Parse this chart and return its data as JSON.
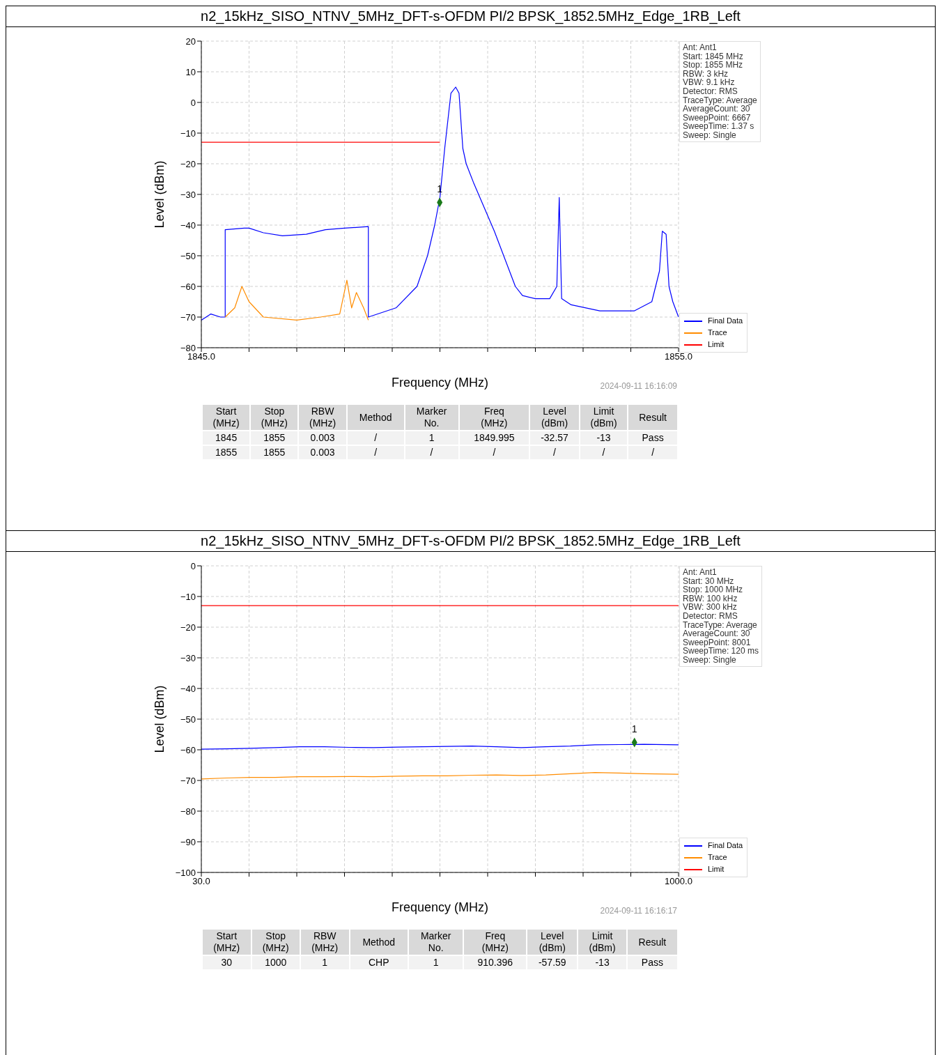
{
  "chart_data": [
    {
      "type": "line",
      "title": "n2_15kHz_SISO_NTNV_5MHz_DFT-s-OFDM PI/2 BPSK_1852.5MHz_Edge_1RB_Left",
      "xlabel": "Frequency (MHz)",
      "ylabel": "Level (dBm)",
      "xlim": [
        1845,
        1855
      ],
      "xticks": [
        {
          "value": 1845,
          "label": "1845.0"
        },
        {
          "value": 1846,
          "label": null
        },
        {
          "value": 1847,
          "label": null
        },
        {
          "value": 1848,
          "label": null
        },
        {
          "value": 1849,
          "label": null
        },
        {
          "value": 1850,
          "label": null
        },
        {
          "value": 1851,
          "label": null
        },
        {
          "value": 1852,
          "label": null
        },
        {
          "value": 1853,
          "label": null
        },
        {
          "value": 1854,
          "label": null
        },
        {
          "value": 1855,
          "label": "1855.0"
        }
      ],
      "ylim": [
        -80,
        20
      ],
      "yticks": [
        {
          "value": -80,
          "label": "−80"
        },
        {
          "value": -70,
          "label": "−70"
        },
        {
          "value": -60,
          "label": "−60"
        },
        {
          "value": -50,
          "label": "−50"
        },
        {
          "value": -40,
          "label": "−40"
        },
        {
          "value": -30,
          "label": "−30"
        },
        {
          "value": -20,
          "label": "−20"
        },
        {
          "value": -10,
          "label": "−10"
        },
        0,
        10,
        20
      ],
      "grid": true,
      "legend": "bottom right",
      "series": [
        {
          "name": "Final Data",
          "color": "#0000ff",
          "x": [
            1845,
            1845.2,
            1845.4,
            1845.5,
            1845.5,
            1845.9,
            1846,
            1846.3,
            1846.7,
            1847.2,
            1847.6,
            1848,
            1848.5,
            1848.5,
            1849.08,
            1849.52,
            1849.74,
            1849.89,
            1850,
            1850.1,
            1850.23,
            1850.33,
            1850.4,
            1850.48,
            1850.55,
            1850.7,
            1851.14,
            1851.58,
            1851.73,
            1852,
            1852.3,
            1852.45,
            1852.5,
            1852.55,
            1852.75,
            1853.35,
            1854.07,
            1854.44,
            1854.6,
            1854.66,
            1854.74,
            1854.8,
            1854.88,
            1855
          ],
          "values": [
            -71,
            -69,
            -70,
            -70,
            -41.5,
            -41,
            -41,
            -42.5,
            -43.5,
            -43,
            -41.5,
            -41,
            -40.5,
            -70,
            -67,
            -60,
            -50,
            -40,
            -31,
            -15,
            3,
            5,
            3,
            -15,
            -20,
            -26,
            -42,
            -60,
            -63,
            -64,
            -64,
            -60,
            -31,
            -64,
            -66,
            -68,
            -68,
            -65,
            -55,
            -42,
            -43,
            -60,
            -65,
            -70
          ]
        },
        {
          "name": "Trace",
          "color": "#ff8c00",
          "x": [
            1845.5,
            1845.7,
            1845.85,
            1846,
            1846.3,
            1847,
            1847.5,
            1847.9,
            1848.05,
            1848.15,
            1848.25,
            1848.4,
            1848.5
          ],
          "values": [
            -70,
            -67,
            -60,
            -65,
            -70,
            -71,
            -70,
            -69,
            -58,
            -67,
            -62,
            -67,
            -71
          ]
        },
        {
          "name": "Limit",
          "color": "#ff0000",
          "x": [
            1845,
            1850
          ],
          "values": [
            -13,
            -13
          ]
        },
        {
          "type": "scatter",
          "color": "#1a7a1a",
          "marker": "diamond",
          "x": [
            1849.995
          ],
          "values": [
            -32.6
          ]
        }
      ],
      "annotations": [
        "Ant: Ant1\nStart: 1845 MHz\nStop: 1855 MHz\nRBW: 3 kHz\nVBW: 9.1 kHz\nDetector: RMS\nTraceType: Average\nAverageCount: 30\nSweepPoint: 6667\nSweepTime: 1.37 s\nSweep: Single",
        "2024-09-11 16:16:09",
        {
          "text": "1",
          "x": 1849.995,
          "y": -32.6
        },
        "Start\n(MHz)",
        "Stop\n(MHz)",
        "RBW\n(MHz)",
        "Method",
        "Marker\nNo.",
        "Freq\n(MHz)",
        "Level\n(dBm)",
        "Limit\n(dBm)",
        "Result",
        "1845",
        "1855",
        "0.003",
        "/",
        "1",
        "1849.995",
        "-32.57",
        "-13",
        "Pass",
        "1855",
        "1855",
        "0.003",
        "/",
        "/",
        "/",
        "/",
        "/",
        "/"
      ]
    },
    {
      "type": "line",
      "title": "n2_15kHz_SISO_NTNV_5MHz_DFT-s-OFDM PI/2 BPSK_1852.5MHz_Edge_1RB_Left",
      "xlabel": "Frequency (MHz)",
      "ylabel": "Level (dBm)",
      "xlim": [
        30,
        1000
      ],
      "xticks": [
        {
          "value": 30,
          "label": "30.0"
        },
        {
          "value": 127,
          "label": null
        },
        {
          "value": 224,
          "label": null
        },
        {
          "value": 321,
          "label": null
        },
        {
          "value": 418,
          "label": null
        },
        {
          "value": 515,
          "label": null
        },
        {
          "value": 612,
          "label": null
        },
        {
          "value": 709,
          "label": null
        },
        {
          "value": 806,
          "label": null
        },
        {
          "value": 903,
          "label": null
        },
        {
          "value": 1000,
          "label": "1000.0"
        }
      ],
      "ylim": [
        -100,
        0
      ],
      "yticks": [
        {
          "value": -100,
          "label": "−100"
        },
        {
          "value": -90,
          "label": "−90"
        },
        {
          "value": -80,
          "label": "−80"
        },
        {
          "value": -70,
          "label": "−70"
        },
        {
          "value": -60,
          "label": "−60"
        },
        {
          "value": -50,
          "label": "−50"
        },
        {
          "value": -40,
          "label": "−40"
        },
        {
          "value": -30,
          "label": "−30"
        },
        {
          "value": -20,
          "label": "−20"
        },
        {
          "value": -10,
          "label": "−10"
        },
        0
      ],
      "grid": true,
      "legend": "bottom right",
      "series": [
        {
          "name": "Final Data",
          "color": "#0000ff",
          "x": [
            30,
            80,
            130,
            180,
            230,
            280,
            330,
            380,
            430,
            480,
            530,
            580,
            630,
            680,
            730,
            780,
            830,
            880,
            930,
            1000
          ],
          "values": [
            -59.8,
            -59.7,
            -59.5,
            -59.3,
            -59,
            -59,
            -59.2,
            -59.3,
            -59.1,
            -59,
            -58.9,
            -58.8,
            -59,
            -59.3,
            -59,
            -58.8,
            -58.4,
            -58.3,
            -58.2,
            -58.4
          ]
        },
        {
          "name": "Trace",
          "color": "#ff8c00",
          "x": [
            30,
            80,
            130,
            180,
            230,
            280,
            330,
            380,
            430,
            480,
            530,
            580,
            630,
            680,
            730,
            780,
            830,
            880,
            930,
            1000
          ],
          "values": [
            -69.5,
            -69.2,
            -69,
            -69,
            -68.8,
            -68.8,
            -68.7,
            -68.8,
            -68.6,
            -68.5,
            -68.5,
            -68.3,
            -68.2,
            -68.4,
            -68.2,
            -67.8,
            -67.4,
            -67.6,
            -67.8,
            -68
          ]
        },
        {
          "name": "Limit",
          "color": "#ff0000",
          "x": [
            30,
            1000
          ],
          "values": [
            -13,
            -13
          ]
        },
        {
          "type": "scatter",
          "color": "#1a7a1a",
          "marker": "diamond",
          "x": [
            910.396
          ],
          "values": [
            -57.6
          ]
        }
      ],
      "annotations": [
        "Ant: Ant1\nStart: 30 MHz\nStop: 1000 MHz\nRBW: 100 kHz\nVBW: 300 kHz\nDetector: RMS\nTraceType: Average\nAverageCount: 30\nSweepPoint: 8001\nSweepTime: 120 ms\nSweep: Single",
        "2024-09-11 16:16:17",
        {
          "text": "1",
          "x": 910.396,
          "y": -57.6
        },
        "Start\n(MHz)",
        "Stop\n(MHz)",
        "RBW\n(MHz)",
        "Method",
        "Marker\nNo.",
        "Freq\n(MHz)",
        "Level\n(dBm)",
        "Limit\n(dBm)",
        "Result",
        "30",
        "1000",
        "1",
        "CHP",
        "1",
        "910.396",
        "-57.59",
        "-13",
        "Pass"
      ]
    }
  ]
}
